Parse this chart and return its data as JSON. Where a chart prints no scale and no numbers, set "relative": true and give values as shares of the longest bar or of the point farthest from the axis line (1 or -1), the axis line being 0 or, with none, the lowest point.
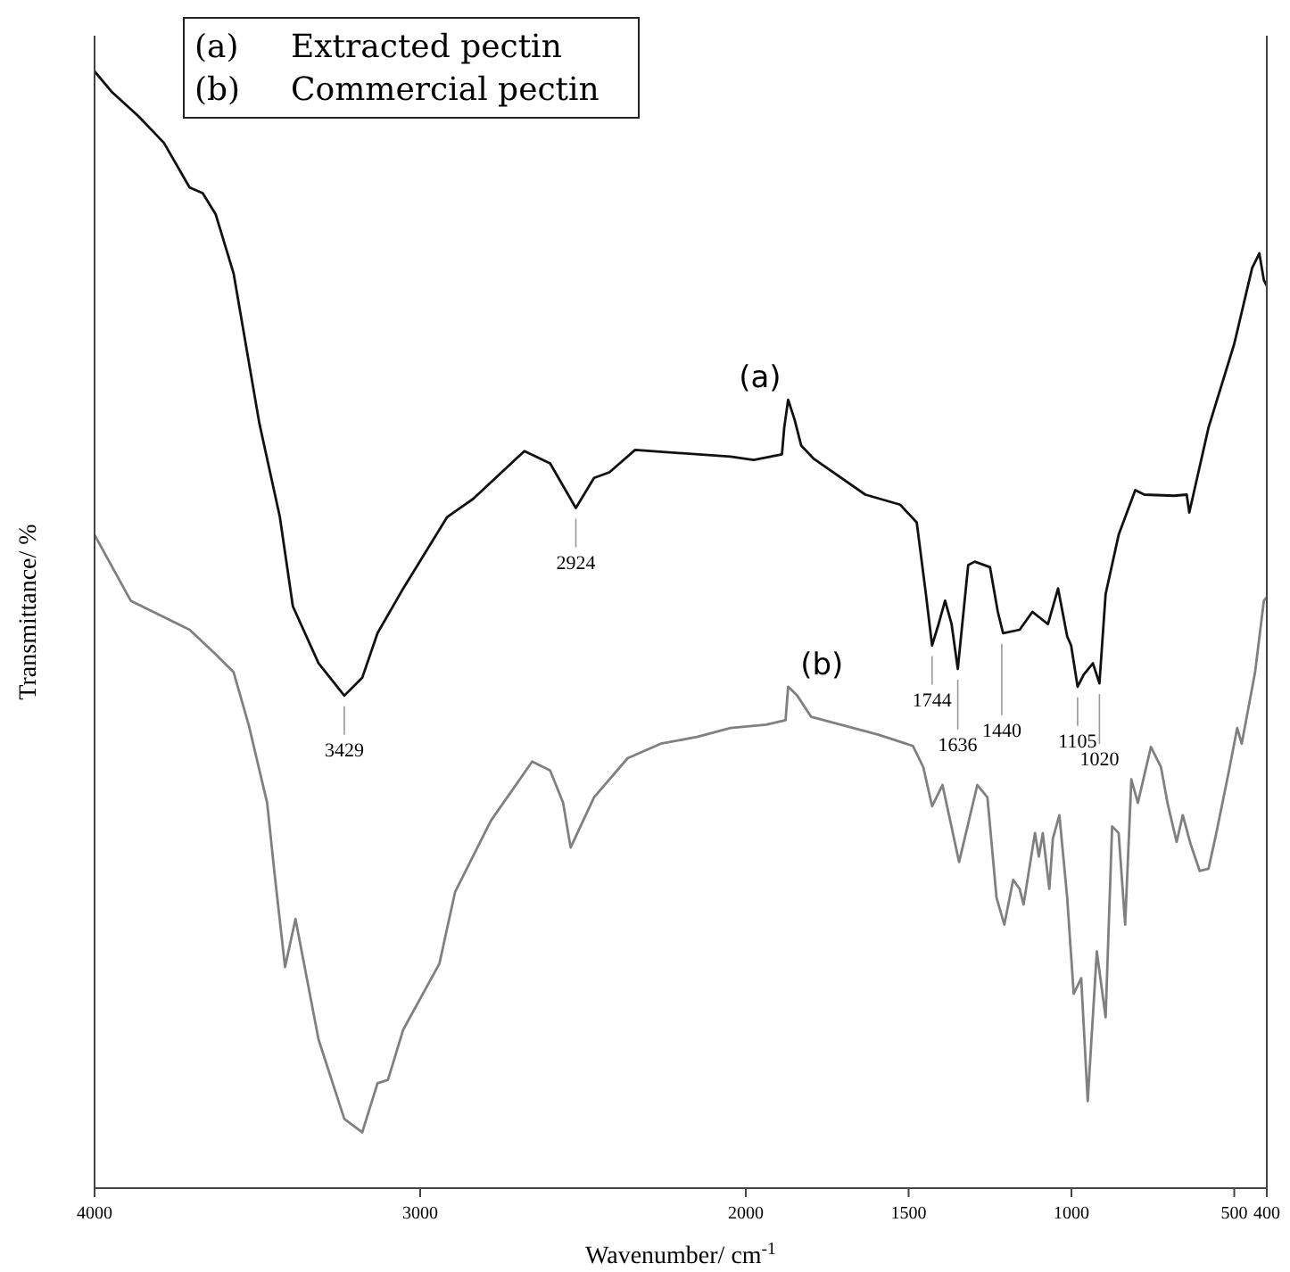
{
  "chart_data": {
    "type": "line",
    "relative": true,
    "xlabel": "Wavenumber/ cm$^{-1}$",
    "ylabel": "Transmittance/ %",
    "xlim": [
      4000,
      400
    ],
    "xticks": [
      4000,
      3000,
      2000,
      1500,
      1000,
      500,
      400
    ],
    "legend": false,
    "line_style": "solid",
    "marker": "none",
    "series": [
      {
        "name": "(a)",
        "color": "#111111",
        "x": [
          4000,
          3945,
          3866,
          3787,
          3708,
          3668,
          3628,
          3573,
          3494,
          3431,
          3391,
          3312,
          3233,
          3178,
          3131,
          3052,
          2917,
          2838,
          2680,
          2601,
          2522,
          2466,
          2419,
          2340,
          2047,
          1976,
          1889,
          1882,
          1870,
          1850,
          1830,
          1791,
          1633,
          1526,
          1475,
          1447,
          1428,
          1408,
          1388,
          1368,
          1349,
          1317,
          1297,
          1250,
          1226,
          1210,
          1159,
          1120,
          1072,
          1041,
          1013,
          1001,
          981,
          962,
          934,
          914,
          895,
          855,
          804,
          776,
          685,
          646,
          638,
          579,
          500,
          445,
          423,
          409,
          400
        ],
        "values": [
          1.0,
          0.981,
          0.96,
          0.936,
          0.896,
          0.891,
          0.872,
          0.819,
          0.685,
          0.601,
          0.521,
          0.47,
          0.441,
          0.457,
          0.497,
          0.537,
          0.601,
          0.617,
          0.66,
          0.649,
          0.609,
          0.636,
          0.641,
          0.661,
          0.655,
          0.652,
          0.657,
          0.681,
          0.706,
          0.688,
          0.665,
          0.653,
          0.621,
          0.612,
          0.596,
          0.532,
          0.486,
          0.505,
          0.526,
          0.505,
          0.465,
          0.558,
          0.561,
          0.556,
          0.516,
          0.497,
          0.5,
          0.516,
          0.505,
          0.537,
          0.494,
          0.486,
          0.449,
          0.46,
          0.47,
          0.452,
          0.532,
          0.585,
          0.625,
          0.621,
          0.62,
          0.621,
          0.605,
          0.681,
          0.756,
          0.824,
          0.837,
          0.813,
          0.808
        ]
      },
      {
        "name": "(b)",
        "color": "#808080",
        "x": [
          4000,
          3889,
          3708,
          3628,
          3573,
          3526,
          3470,
          3447,
          3415,
          3383,
          3312,
          3233,
          3178,
          3131,
          3099,
          3052,
          2941,
          2893,
          2783,
          2656,
          2601,
          2561,
          2538,
          2466,
          2363,
          2261,
          2150,
          2047,
          1937,
          1878,
          1870,
          1842,
          1799,
          1593,
          1487,
          1455,
          1428,
          1396,
          1345,
          1289,
          1258,
          1230,
          1206,
          1179,
          1159,
          1147,
          1112,
          1100,
          1088,
          1068,
          1057,
          1037,
          1013,
          993,
          970,
          950,
          922,
          895,
          875,
          855,
          835,
          816,
          796,
          756,
          725,
          705,
          677,
          658,
          634,
          606,
          579,
          555,
          516,
          491,
          477,
          436,
          409,
          400
        ],
        "values": [
          0.585,
          0.526,
          0.5,
          0.478,
          0.462,
          0.414,
          0.345,
          0.281,
          0.198,
          0.241,
          0.133,
          0.062,
          0.05,
          0.094,
          0.097,
          0.142,
          0.201,
          0.265,
          0.329,
          0.382,
          0.374,
          0.345,
          0.305,
          0.35,
          0.385,
          0.398,
          0.404,
          0.412,
          0.415,
          0.419,
          0.449,
          0.441,
          0.422,
          0.406,
          0.396,
          0.377,
          0.342,
          0.361,
          0.292,
          0.361,
          0.35,
          0.26,
          0.236,
          0.276,
          0.268,
          0.254,
          0.318,
          0.297,
          0.318,
          0.268,
          0.313,
          0.334,
          0.26,
          0.174,
          0.188,
          0.078,
          0.212,
          0.153,
          0.324,
          0.318,
          0.236,
          0.366,
          0.345,
          0.395,
          0.377,
          0.345,
          0.31,
          0.334,
          0.308,
          0.284,
          0.286,
          0.318,
          0.374,
          0.412,
          0.398,
          0.462,
          0.526,
          0.529
        ]
      }
    ],
    "annotations": [
      {
        "text": "3429",
        "x": 3233,
        "y": 0.441
      },
      {
        "text": "2924",
        "x": 2522,
        "y": 0.609
      },
      {
        "text": "1744",
        "x": 1428,
        "y": 0.486
      },
      {
        "text": "1636",
        "x": 1349,
        "y": 0.465
      },
      {
        "text": "1440",
        "x": 1214,
        "y": 0.497
      },
      {
        "text": "1105",
        "x": 981,
        "y": 0.449
      },
      {
        "text": "1020",
        "x": 914,
        "y": 0.452
      },
      "(a) Extracted pectin",
      "(b) Commercial pectin"
    ]
  }
}
